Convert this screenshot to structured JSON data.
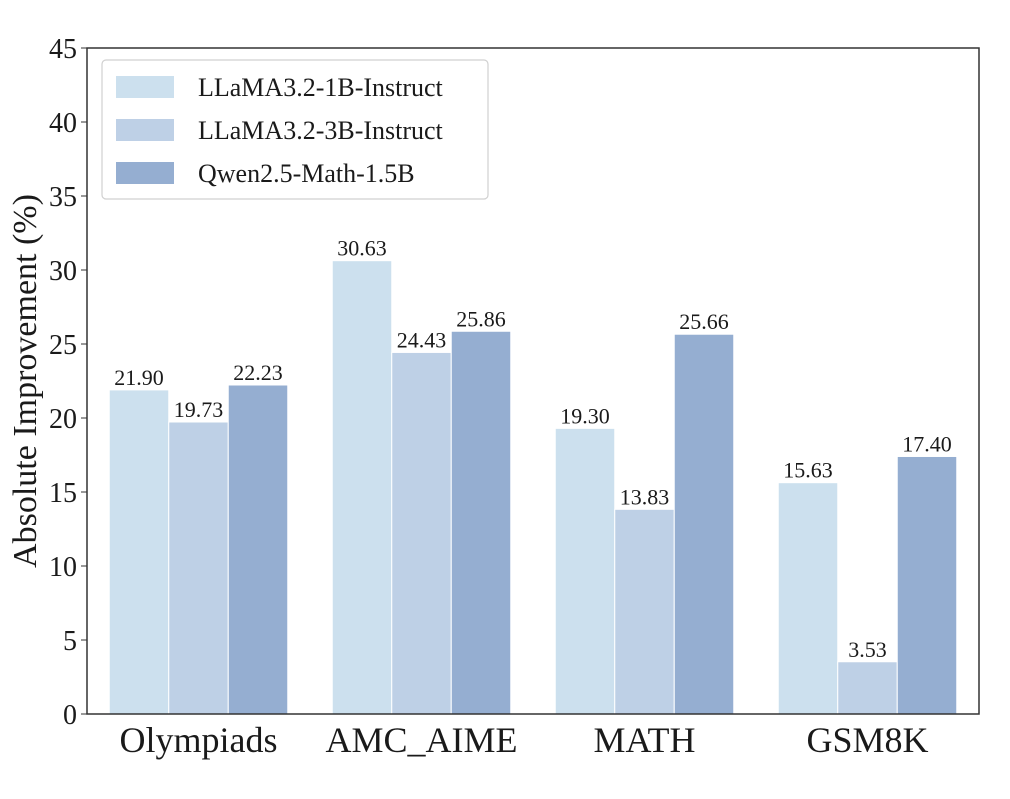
{
  "chart_data": {
    "type": "bar",
    "title": "",
    "xlabel": "",
    "ylabel": "Absolute Improvement (%)",
    "ylim": [
      0,
      45
    ],
    "yticks": [
      0,
      5,
      10,
      15,
      20,
      25,
      30,
      35,
      40,
      45
    ],
    "grid": false,
    "legend_position": "top-left",
    "categories": [
      "Olympiads",
      "AMC_AIME",
      "MATH",
      "GSM8K"
    ],
    "series": [
      {
        "name": "LLaMA3.2-1B-Instruct",
        "color": "#cce0ee",
        "values": [
          21.9,
          30.63,
          19.3,
          15.63
        ]
      },
      {
        "name": "LLaMA3.2-3B-Instruct",
        "color": "#bed0e6",
        "values": [
          19.73,
          24.43,
          13.83,
          3.53
        ]
      },
      {
        "name": "Qwen2.5-Math-1.5B",
        "color": "#95aed1",
        "values": [
          22.23,
          25.86,
          25.66,
          17.4
        ]
      }
    ]
  }
}
